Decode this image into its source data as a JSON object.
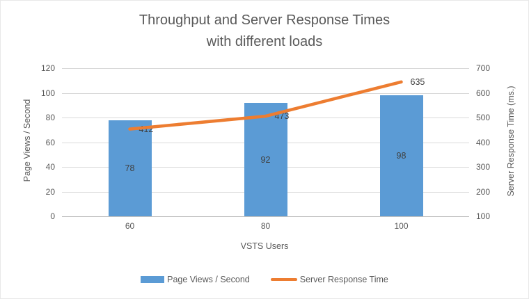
{
  "chart_data": {
    "type": "combo-bar-line",
    "title": "Throughput and Server Response Times with different loads",
    "title_lines": [
      "Throughput and Server Response Times",
      "with different loads"
    ],
    "categories": [
      "60",
      "80",
      "100"
    ],
    "series": [
      {
        "name": "Page Views / Second",
        "type": "bar",
        "axis": "left",
        "color": "#5B9BD5",
        "values": [
          78,
          92,
          98
        ]
      },
      {
        "name": "Server Response Time",
        "type": "line",
        "axis": "right",
        "color": "#ED7D31",
        "values": [
          412,
          473,
          635
        ]
      }
    ],
    "xlabel": "VSTS Users",
    "y_left": {
      "label": "Page Views / Second",
      "min": 0,
      "max": 120,
      "step": 20
    },
    "y_right": {
      "label": "Server Response Time (ms.)",
      "min": 0,
      "max": 700,
      "step": 100
    },
    "grid": true,
    "legend_position": "bottom",
    "colors": {
      "background": "#FFFFFF",
      "grid": "#D9D9D9",
      "axis_line": "#C0C0C0",
      "text": "#595959",
      "data_label": "#404040"
    }
  }
}
